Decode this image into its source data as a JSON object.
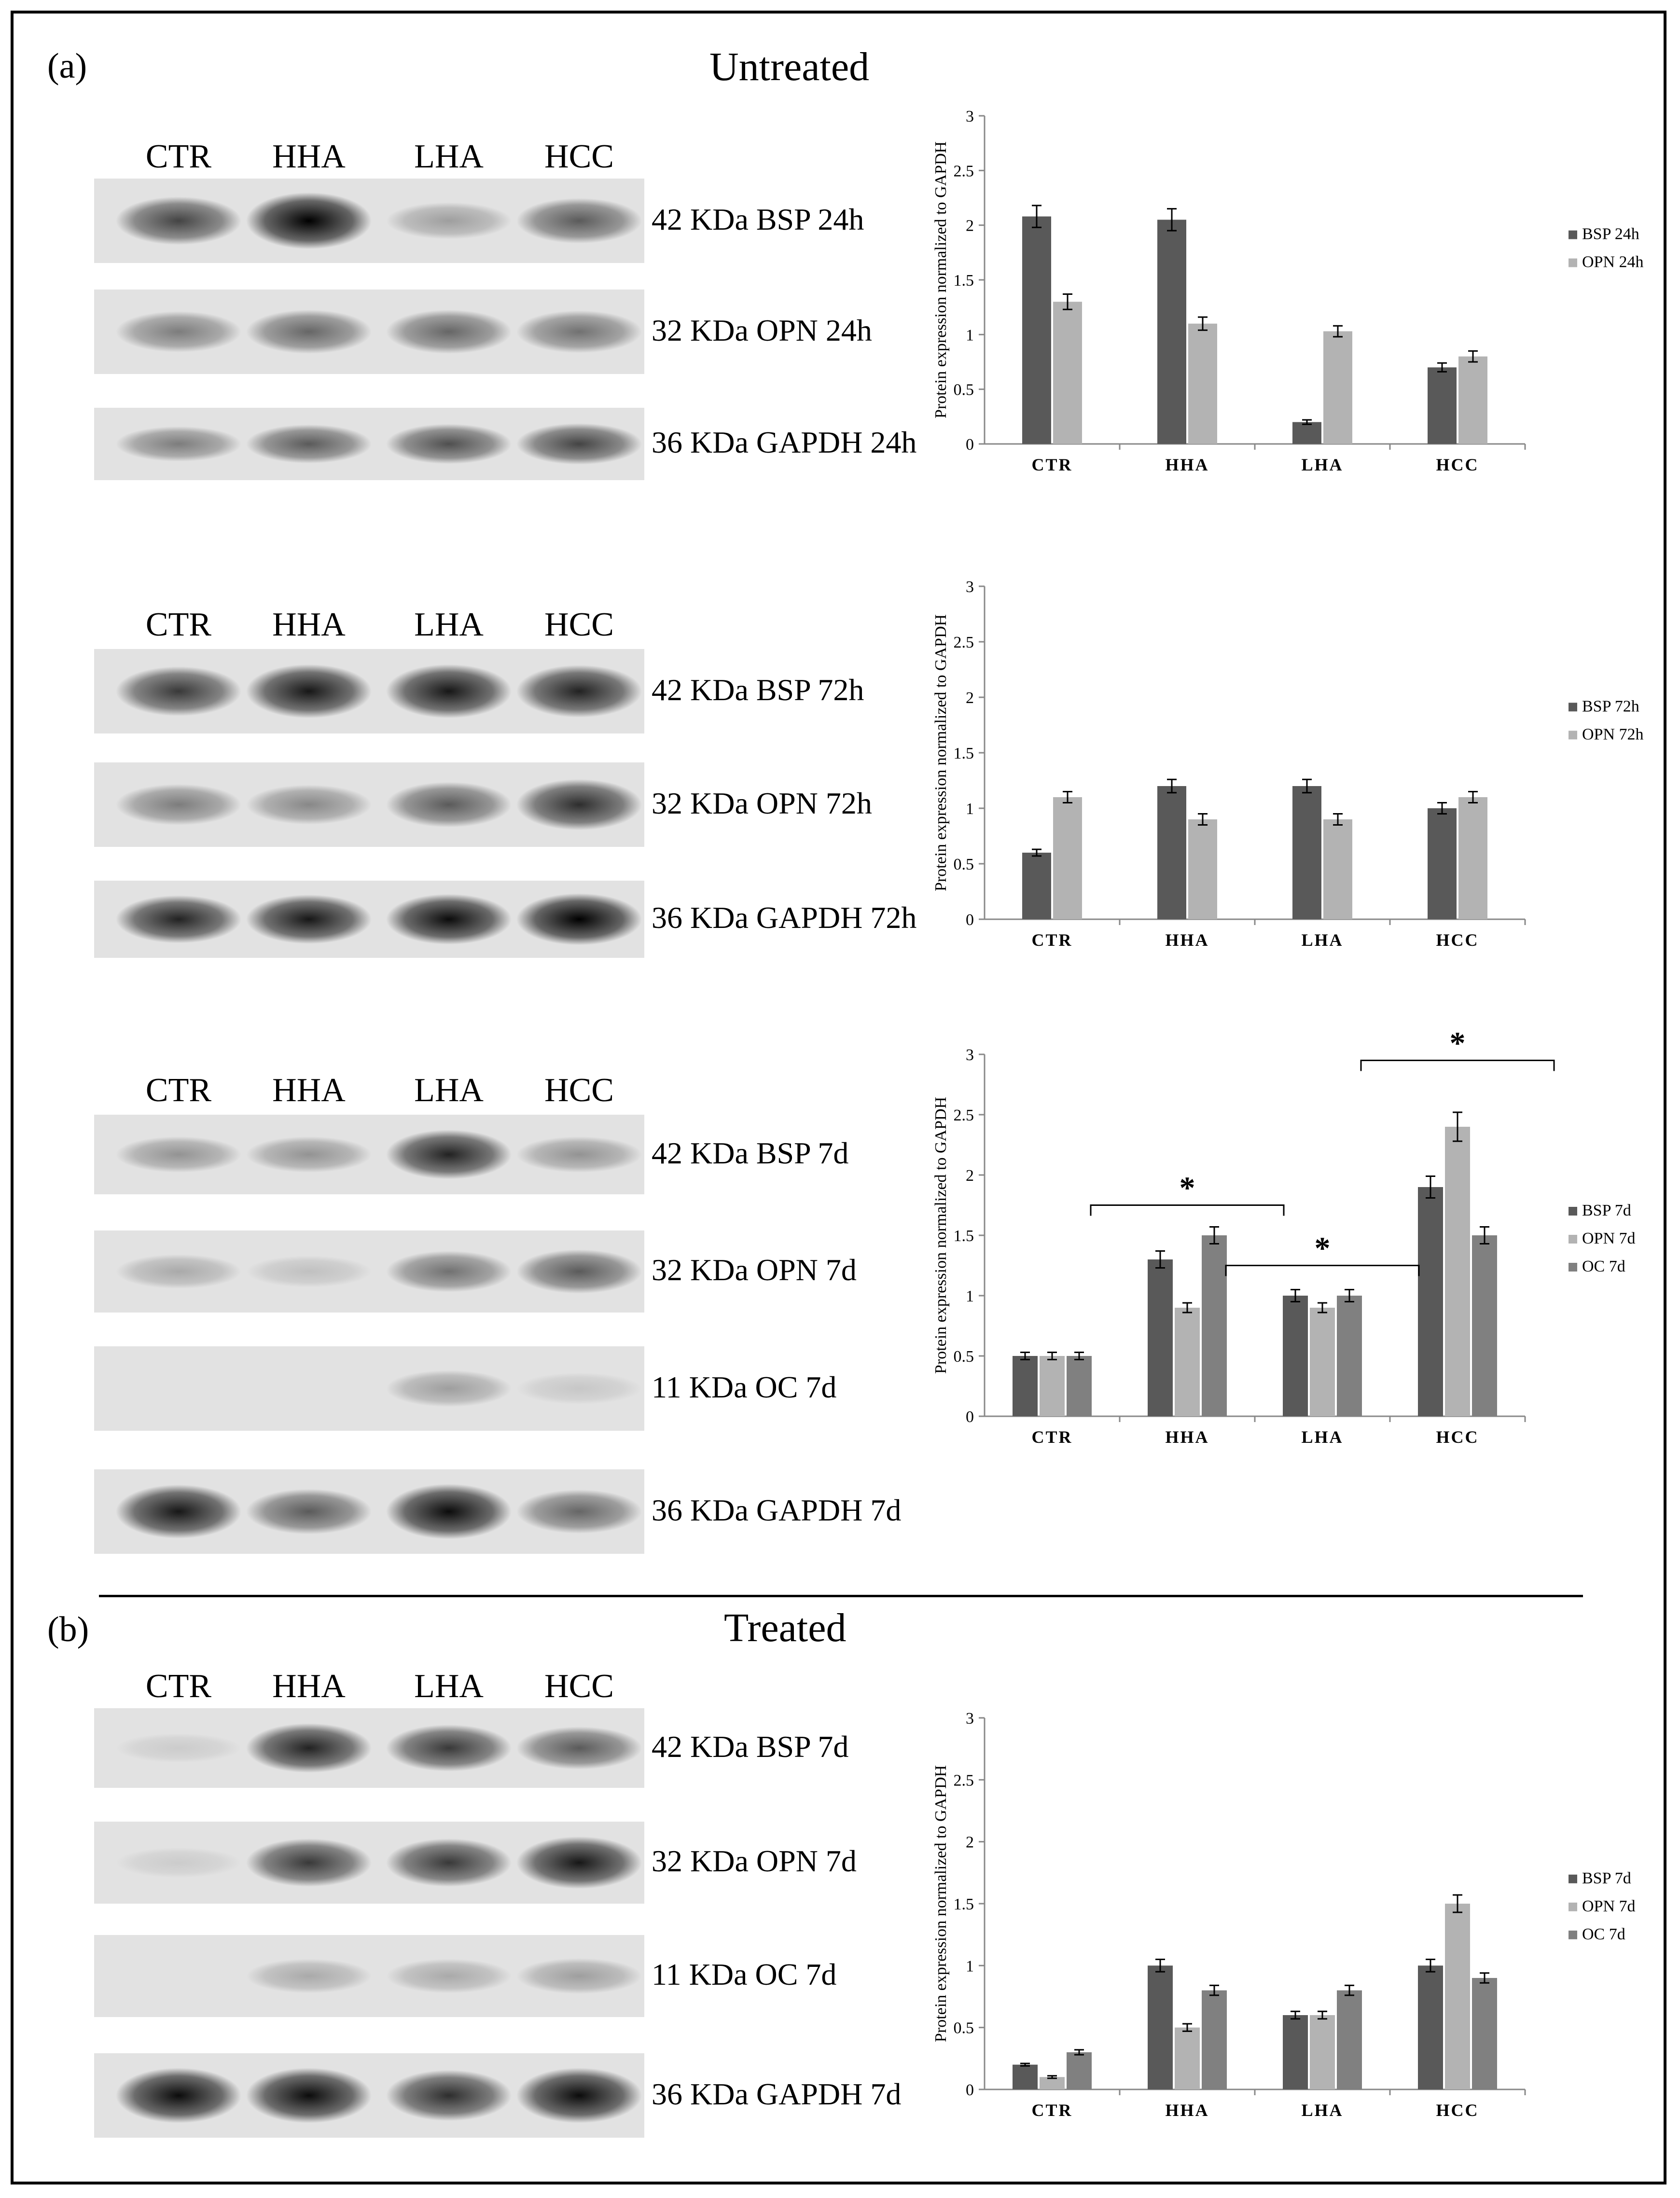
{
  "panels": {
    "a": {
      "label": "(a)",
      "title": "Untreated"
    },
    "b": {
      "label": "(b)",
      "title": "Treated"
    }
  },
  "blots": [
    {
      "lanes": [
        "CTR",
        "HHA",
        "LHA",
        "HCC"
      ],
      "bands": [
        "42 KDa BSP 24h",
        "32 KDa OPN 24h",
        "36 KDa GAPDH 24h"
      ],
      "intensity": [
        [
          0.7,
          1.0,
          0.3,
          0.6
        ],
        [
          0.45,
          0.55,
          0.55,
          0.5
        ],
        [
          0.45,
          0.6,
          0.65,
          0.7
        ]
      ]
    },
    {
      "lanes": [
        "CTR",
        "HHA",
        "LHA",
        "HCC"
      ],
      "bands": [
        "42 KDa BSP 72h",
        "32 KDa OPN 72h",
        "36 KDa GAPDH 72h"
      ],
      "intensity": [
        [
          0.75,
          0.9,
          0.9,
          0.85
        ],
        [
          0.45,
          0.4,
          0.6,
          0.8
        ],
        [
          0.85,
          0.9,
          0.95,
          1.0
        ]
      ]
    },
    {
      "lanes": [
        "CTR",
        "HHA",
        "LHA",
        "HCC"
      ],
      "bands": [
        "42 KDa BSP 7d",
        "32 KDa OPN 7d",
        "11 KDa OC 7d",
        "36 KDa GAPDH 7d"
      ],
      "intensity": [
        [
          0.35,
          0.35,
          0.85,
          0.35
        ],
        [
          0.25,
          0.15,
          0.5,
          0.6
        ],
        [
          0.0,
          0.0,
          0.3,
          0.12
        ],
        [
          0.9,
          0.6,
          0.95,
          0.55
        ]
      ]
    },
    {
      "lanes": [
        "CTR",
        "HHA",
        "LHA",
        "HCC"
      ],
      "bands": [
        "42 KDa BSP 7d",
        "32 KDa OPN 7d",
        "11 KDa OC 7d",
        "36 KDa GAPDH 7d"
      ],
      "intensity": [
        [
          0.1,
          0.85,
          0.75,
          0.6
        ],
        [
          0.1,
          0.75,
          0.75,
          0.9
        ],
        [
          0.0,
          0.25,
          0.25,
          0.3
        ],
        [
          0.95,
          0.95,
          0.8,
          0.95
        ]
      ]
    }
  ],
  "chart_data": [
    {
      "type": "bar",
      "categories": [
        "CTR",
        "HHA",
        "LHA",
        "HCC"
      ],
      "ylabel": "Protein expression normalized to GAPDH",
      "ylim": [
        0,
        3
      ],
      "yticks": [
        "0",
        "0.5",
        "1",
        "1.5",
        "2",
        "2.5",
        "3"
      ],
      "legend": "right",
      "series": [
        {
          "name": "BSP 24h",
          "color": "#595959",
          "values": [
            2.08,
            2.05,
            0.2,
            0.7
          ],
          "err": [
            0.1,
            0.1,
            0.02,
            0.04
          ]
        },
        {
          "name": "OPN 24h",
          "color": "#b3b3b3",
          "values": [
            1.3,
            1.1,
            1.03,
            0.8
          ],
          "err": [
            0.07,
            0.06,
            0.05,
            0.05
          ]
        }
      ]
    },
    {
      "type": "bar",
      "categories": [
        "CTR",
        "HHA",
        "LHA",
        "HCC"
      ],
      "ylabel": "Protein expression normalized to GAPDH",
      "ylim": [
        0,
        3
      ],
      "yticks": [
        "0",
        "0.5",
        "1",
        "1.5",
        "2",
        "2.5",
        "3"
      ],
      "legend": "right",
      "series": [
        {
          "name": "BSP 72h",
          "color": "#595959",
          "values": [
            0.6,
            1.2,
            1.2,
            1.0
          ],
          "err": [
            0.03,
            0.06,
            0.06,
            0.05
          ]
        },
        {
          "name": "OPN 72h",
          "color": "#b3b3b3",
          "values": [
            1.1,
            0.9,
            0.9,
            1.1
          ],
          "err": [
            0.05,
            0.05,
            0.05,
            0.05
          ]
        }
      ]
    },
    {
      "type": "bar",
      "categories": [
        "CTR",
        "HHA",
        "LHA",
        "HCC"
      ],
      "ylabel": "Protein expression normalized to GAPDH",
      "ylim": [
        0,
        3
      ],
      "yticks": [
        "0",
        "0.5",
        "1",
        "1.5",
        "2",
        "2.5",
        "3"
      ],
      "legend": "right",
      "series": [
        {
          "name": "BSP 7d",
          "color": "#595959",
          "values": [
            0.5,
            1.3,
            1.0,
            1.9
          ],
          "err": [
            0.03,
            0.07,
            0.05,
            0.09
          ]
        },
        {
          "name": "OPN 7d",
          "color": "#b3b3b3",
          "values": [
            0.5,
            0.9,
            0.9,
            2.4
          ],
          "err": [
            0.03,
            0.04,
            0.04,
            0.12
          ]
        },
        {
          "name": "OC 7d",
          "color": "#808080",
          "values": [
            0.5,
            1.5,
            1.0,
            1.5
          ],
          "err": [
            0.03,
            0.07,
            0.05,
            0.07
          ]
        }
      ],
      "significance": [
        {
          "category": "HHA",
          "label": "*",
          "y": 1.75
        },
        {
          "category": "LHA",
          "label": "*",
          "y": 1.25
        },
        {
          "category": "HCC",
          "label": "*",
          "y": 2.95
        }
      ]
    },
    {
      "type": "bar",
      "categories": [
        "CTR",
        "HHA",
        "LHA",
        "HCC"
      ],
      "ylabel": "Protein expression normalized to GAPDH",
      "ylim": [
        0,
        3
      ],
      "yticks": [
        "0",
        "0.5",
        "1",
        "1.5",
        "2",
        "2.5",
        "3"
      ],
      "legend": "right",
      "series": [
        {
          "name": "BSP 7d",
          "color": "#595959",
          "values": [
            0.2,
            1.0,
            0.6,
            1.0
          ],
          "err": [
            0.01,
            0.05,
            0.03,
            0.05
          ]
        },
        {
          "name": "OPN 7d",
          "color": "#b3b3b3",
          "values": [
            0.1,
            0.5,
            0.6,
            1.5
          ],
          "err": [
            0.01,
            0.03,
            0.03,
            0.07
          ]
        },
        {
          "name": "OC 7d",
          "color": "#808080",
          "values": [
            0.3,
            0.8,
            0.8,
            0.9
          ],
          "err": [
            0.02,
            0.04,
            0.04,
            0.04
          ]
        }
      ]
    }
  ]
}
